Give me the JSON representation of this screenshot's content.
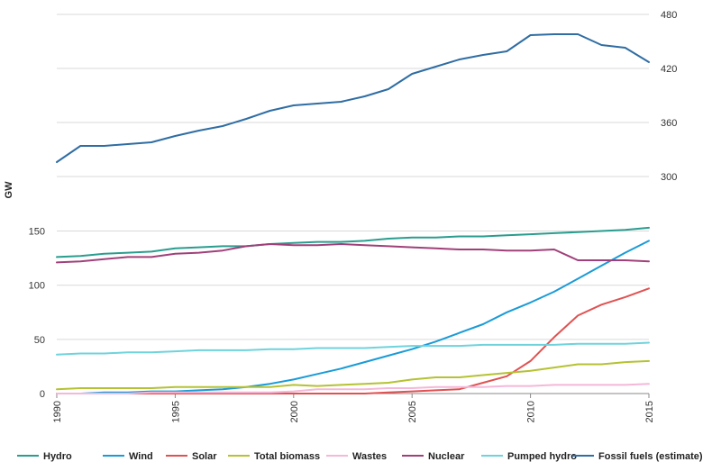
{
  "chart_data": {
    "type": "line",
    "ylabel": "GW",
    "x": [
      1990,
      1991,
      1992,
      1993,
      1994,
      1995,
      1996,
      1997,
      1998,
      1999,
      2000,
      2001,
      2002,
      2003,
      2004,
      2005,
      2006,
      2007,
      2008,
      2009,
      2010,
      2011,
      2012,
      2013,
      2014,
      2015
    ],
    "x_ticks": [
      1990,
      1995,
      2000,
      2005,
      2010,
      2015
    ],
    "lower_axis": {
      "ticks": [
        0,
        50,
        100,
        150
      ],
      "ylim": [
        0,
        160
      ]
    },
    "upper_axis": {
      "ticks": [
        300,
        360,
        420,
        480
      ],
      "ylim": [
        298,
        482
      ]
    },
    "grid": "horizontal",
    "legend_position": "bottom",
    "series": [
      {
        "name": "Hydro",
        "color": "#2a9d8f",
        "axis": "lower",
        "values": [
          126,
          127,
          129,
          130,
          131,
          134,
          135,
          136,
          136,
          138,
          139,
          140,
          140,
          141,
          143,
          144,
          144,
          145,
          145,
          146,
          147,
          148,
          149,
          150,
          151,
          153
        ]
      },
      {
        "name": "Wind",
        "color": "#1a9bd7",
        "axis": "lower",
        "values": [
          0,
          0,
          1,
          1,
          2,
          2,
          3,
          4,
          6,
          9,
          13,
          18,
          23,
          29,
          35,
          41,
          48,
          56,
          64,
          75,
          84,
          94,
          106,
          118,
          130,
          141
        ]
      },
      {
        "name": "Solar",
        "color": "#e05252",
        "axis": "lower",
        "values": [
          0,
          0,
          0,
          0,
          0,
          0,
          0,
          0,
          0,
          0,
          0,
          0,
          0,
          0,
          1,
          2,
          3,
          4,
          10,
          16,
          30,
          52,
          72,
          82,
          89,
          97
        ]
      },
      {
        "name": "Total biomass",
        "color": "#b5c233",
        "axis": "lower",
        "values": [
          4,
          5,
          5,
          5,
          5,
          6,
          6,
          6,
          6,
          6,
          8,
          7,
          8,
          9,
          10,
          13,
          15,
          15,
          17,
          19,
          21,
          24,
          27,
          27,
          29,
          30
        ]
      },
      {
        "name": "Wastes",
        "color": "#f4b8d8",
        "axis": "lower",
        "values": [
          0,
          0,
          0,
          0,
          1,
          1,
          1,
          1,
          1,
          1,
          2,
          4,
          4,
          4,
          5,
          5,
          6,
          6,
          6,
          7,
          7,
          8,
          8,
          8,
          8,
          9
        ]
      },
      {
        "name": "Nuclear",
        "color": "#a0407a",
        "axis": "lower",
        "values": [
          121,
          122,
          124,
          126,
          126,
          129,
          130,
          132,
          136,
          138,
          137,
          137,
          138,
          137,
          136,
          135,
          134,
          133,
          133,
          132,
          132,
          133,
          123,
          123,
          123,
          122
        ]
      },
      {
        "name": "Pumped hydro",
        "color": "#6fd3dc",
        "axis": "lower",
        "values": [
          36,
          37,
          37,
          38,
          38,
          39,
          40,
          40,
          40,
          41,
          41,
          42,
          42,
          42,
          43,
          44,
          44,
          44,
          45,
          45,
          45,
          45,
          46,
          46,
          46,
          47
        ]
      },
      {
        "name": "Fossil fuels (estimate)",
        "color": "#2f6da3",
        "axis": "upper",
        "values": [
          316,
          334,
          334,
          336,
          338,
          345,
          351,
          356,
          364,
          373,
          379,
          381,
          383,
          389,
          397,
          414,
          422,
          430,
          435,
          439,
          457,
          458,
          458,
          446,
          443,
          427
        ]
      }
    ]
  }
}
